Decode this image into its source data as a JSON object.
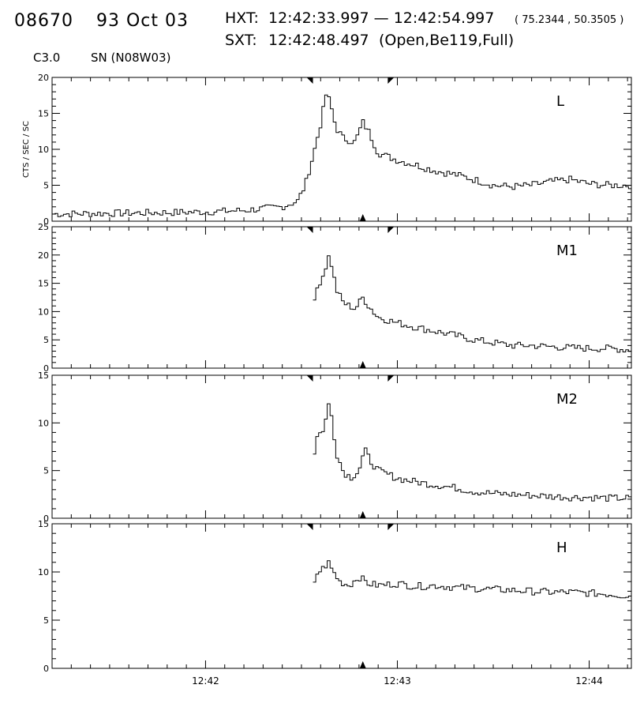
{
  "header": {
    "event_id": "08670",
    "date": "93 Oct 03",
    "hxt_label": "HXT:",
    "hxt_range": "12:42:33.997 — 12:42:54.997",
    "coords": "( 75.2344 , 50.3505 )",
    "sxt_label": "SXT:",
    "sxt_time": "12:42:48.497",
    "sxt_info": "(Open,Be119,Full)",
    "goes_class": "C3.0",
    "location": "SN (N08W03)"
  },
  "chart_data": [
    {
      "type": "line",
      "channel": "L",
      "ylabel": "CTS / SEC / SC",
      "ylim": [
        0,
        20
      ],
      "yticks": [
        "0",
        "5",
        "10",
        "15",
        "20"
      ],
      "x": [
        "12:41.20",
        "12:41.50",
        "12:41.80",
        "12:42.00",
        "12:42.20",
        "12:42.40",
        "12:42.48",
        "12:42.52",
        "12:42.56",
        "12:42.60",
        "12:42.63",
        "12:42.65",
        "12:42.68",
        "12:42.72",
        "12:42.78",
        "12:42.82",
        "12:42.85",
        "12:42.90",
        "12:43.00",
        "12:43.10",
        "12:43.20",
        "12:43.30",
        "12:43.40",
        "12:43.50",
        "12:43.60",
        "12:43.70",
        "12:43.80",
        "12:43.90",
        "12:44.00",
        "12:44.10",
        "12:44.22"
      ],
      "values": [
        1.0,
        1.1,
        1.2,
        1.3,
        1.5,
        2.0,
        2.8,
        5.0,
        9.0,
        13.5,
        17.8,
        16.5,
        13.0,
        11.5,
        11.0,
        13.8,
        12.5,
        9.5,
        8.5,
        7.8,
        7.0,
        6.5,
        5.8,
        5.0,
        4.8,
        5.0,
        5.5,
        5.8,
        5.2,
        5.0,
        5.0
      ]
    },
    {
      "type": "line",
      "channel": "M1",
      "ylim": [
        0,
        25
      ],
      "yticks": [
        "0",
        "5",
        "10",
        "15",
        "20",
        "25"
      ],
      "x": [
        "12:42.56",
        "12:42.58",
        "12:42.62",
        "12:42.64",
        "12:42.66",
        "12:42.68",
        "12:42.72",
        "12:42.78",
        "12:42.82",
        "12:42.85",
        "12:42.90",
        "12:43.00",
        "12:43.10",
        "12:43.20",
        "12:43.30",
        "12:43.40",
        "12:43.50",
        "12:43.60",
        "12:43.70",
        "12:43.80",
        "12:43.90",
        "12:44.00",
        "12:44.10",
        "12:44.22"
      ],
      "values": [
        10.0,
        14.0,
        17.0,
        19.8,
        18.0,
        14.0,
        11.5,
        10.5,
        12.5,
        11.0,
        9.0,
        8.0,
        7.2,
        6.5,
        5.8,
        5.0,
        4.5,
        4.0,
        4.0,
        3.8,
        3.6,
        3.5,
        3.5,
        3.2
      ]
    },
    {
      "type": "line",
      "channel": "M2",
      "ylim": [
        0,
        15
      ],
      "yticks": [
        "0",
        "5",
        "10",
        "15"
      ],
      "x": [
        "12:42.56",
        "12:42.58",
        "12:42.62",
        "12:42.64",
        "12:42.66",
        "12:42.68",
        "12:42.72",
        "12:42.76",
        "12:42.80",
        "12:42.83",
        "12:42.86",
        "12:42.90",
        "12:43.00",
        "12:43.10",
        "12:43.20",
        "12:43.30",
        "12:43.40",
        "12:43.50",
        "12:43.60",
        "12:43.70",
        "12:43.80",
        "12:43.90",
        "12:44.00",
        "12:44.10",
        "12:44.22"
      ],
      "values": [
        6.0,
        8.5,
        9.5,
        12.0,
        10.5,
        7.0,
        4.8,
        4.3,
        5.0,
        7.2,
        6.0,
        5.0,
        4.2,
        3.8,
        3.5,
        3.2,
        2.8,
        2.6,
        2.5,
        2.4,
        2.3,
        2.2,
        2.2,
        2.1,
        2.1
      ]
    },
    {
      "type": "line",
      "channel": "H",
      "ylim": [
        0,
        15
      ],
      "yticks": [
        "0",
        "5",
        "10",
        "15"
      ],
      "x": [
        "12:42.56",
        "12:42.58",
        "12:42.62",
        "12:42.64",
        "12:42.66",
        "12:42.70",
        "12:42.75",
        "12:42.80",
        "12:42.85",
        "12:42.90",
        "12:43.00",
        "12:43.10",
        "12:43.20",
        "12:43.30",
        "12:43.40",
        "12:43.50",
        "12:43.60",
        "12:43.70",
        "12:43.80",
        "12:43.90",
        "12:44.00",
        "12:44.10",
        "12:44.22"
      ],
      "values": [
        8.0,
        9.8,
        10.5,
        11.0,
        10.2,
        9.0,
        8.6,
        9.5,
        8.8,
        8.6,
        8.8,
        8.5,
        8.6,
        8.4,
        8.3,
        8.2,
        8.1,
        8.0,
        7.9,
        7.9,
        7.8,
        7.7,
        7.5
      ]
    }
  ],
  "x_axis": {
    "tick_labels": [
      "12:42",
      "12:43",
      "12:44"
    ],
    "tick_values": [
      "12:42",
      "12:43",
      "12:44"
    ],
    "xlim": [
      "12:41.20",
      "12:44.22"
    ]
  },
  "markers": {
    "top_marks": [
      "12:42.56",
      "12:42.95"
    ],
    "bottom_marks": [
      "12:42.82"
    ]
  },
  "style": {
    "line_color": "#000000",
    "background": "#ffffff"
  }
}
